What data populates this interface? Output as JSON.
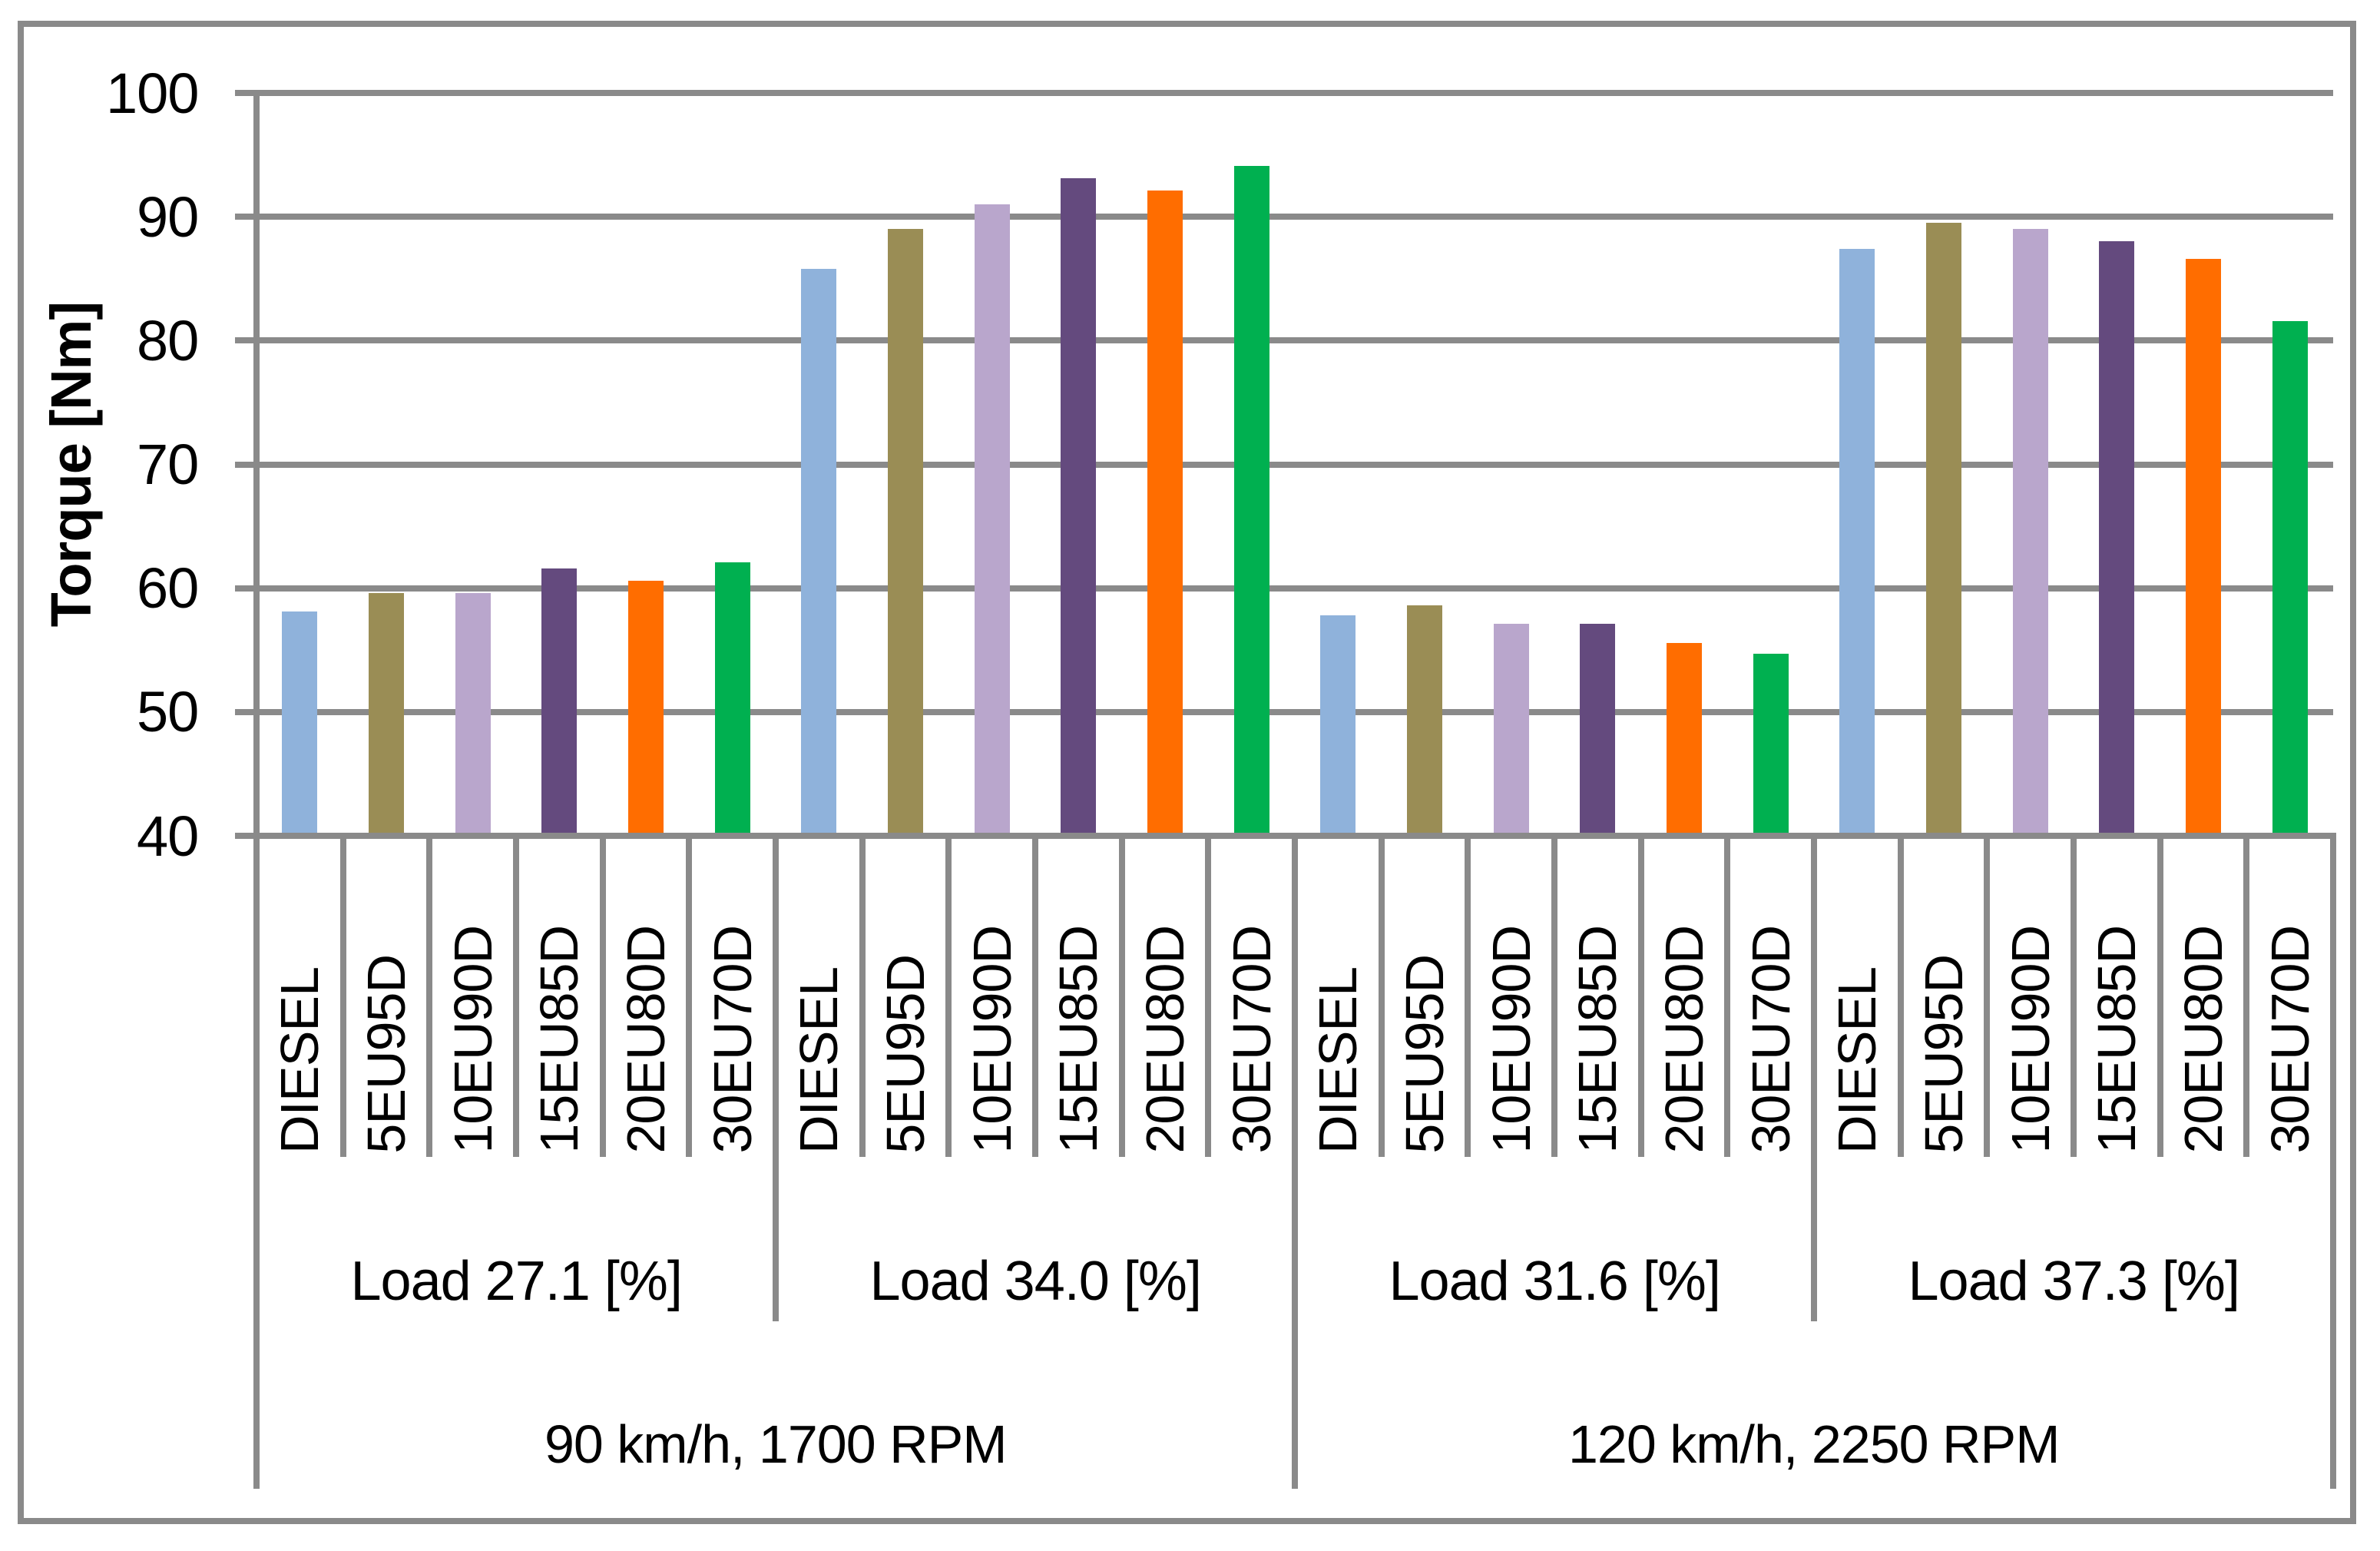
{
  "chart_data": {
    "type": "bar",
    "title": "",
    "ylabel": "Torque [Nm]",
    "xlabel": "",
    "ylim": [
      40,
      100
    ],
    "yticks": [
      40,
      50,
      60,
      70,
      80,
      90,
      100
    ],
    "grid": true,
    "legend_position": "none",
    "categories": [
      "DIESEL",
      "5EU95D",
      "10EU90D",
      "15EU85D",
      "20EU80D",
      "30EU70D"
    ],
    "bar_colors": [
      "#8FB2DB",
      "#9A8D55",
      "#B9A6CC",
      "#644A7E",
      "#FF6D00",
      "#00B050"
    ],
    "groups": [
      {
        "label": "Load 27.1 [%]",
        "values": [
          58.1,
          59.6,
          59.6,
          61.6,
          60.6,
          62.1
        ]
      },
      {
        "label": "Load 34.0 [%]",
        "values": [
          85.8,
          89.0,
          91.0,
          93.1,
          92.1,
          94.1
        ]
      },
      {
        "label": "Load 31.6 [%]",
        "values": [
          57.8,
          58.6,
          57.1,
          57.1,
          55.6,
          54.7
        ]
      },
      {
        "label": "Load 37.3 [%]",
        "values": [
          87.4,
          89.5,
          89.0,
          88.0,
          86.6,
          81.6
        ]
      }
    ],
    "super_groups": [
      {
        "label": "90 km/h, 1700 RPM",
        "group_indexes": [
          0,
          1
        ]
      },
      {
        "label": "120 km/h, 2250 RPM",
        "group_indexes": [
          2,
          3
        ]
      }
    ]
  },
  "colors": {
    "background": "#FFFFFF",
    "line_gray": "#8A8A8A",
    "text": "#000000"
  }
}
